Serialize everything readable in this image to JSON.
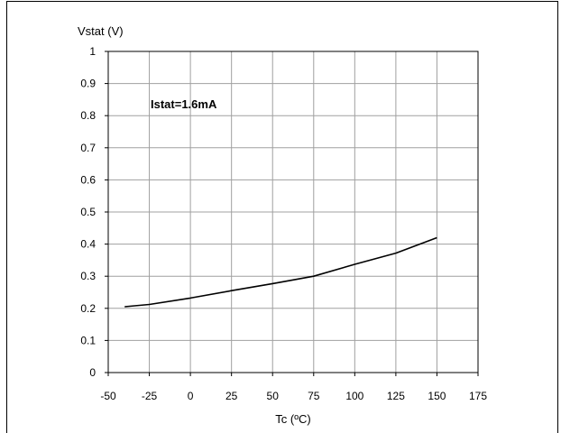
{
  "chart_data": {
    "type": "line",
    "title": "",
    "ylabel": "Vstat (V)",
    "xlabel": "Tc (ºC)",
    "xlim": [
      -50,
      175
    ],
    "ylim": [
      0,
      1
    ],
    "xticks": [
      "-50",
      "-25",
      "0",
      "25",
      "50",
      "75",
      "100",
      "125",
      "150",
      "175"
    ],
    "yticks": [
      "0",
      "0.1",
      "0.2",
      "0.3",
      "0.4",
      "0.5",
      "0.6",
      "0.7",
      "0.8",
      "0.9",
      "1"
    ],
    "grid": true,
    "annotation": "Istat=1.6mA",
    "series": [
      {
        "x": [
          -40,
          -25,
          0,
          25,
          50,
          75,
          100,
          125,
          150
        ],
        "y": [
          0.205,
          0.212,
          0.232,
          0.255,
          0.277,
          0.3,
          0.337,
          0.372,
          0.42
        ],
        "color": "#000000"
      }
    ]
  }
}
